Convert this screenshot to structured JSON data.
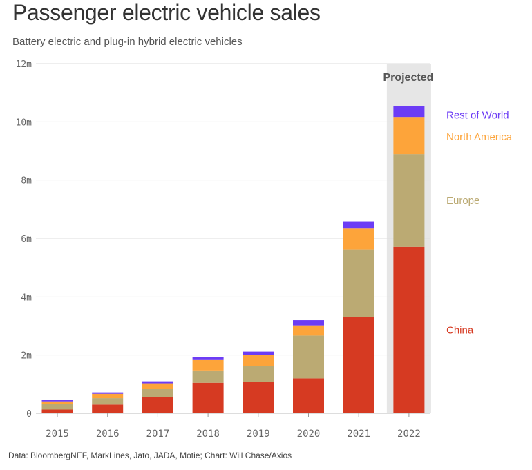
{
  "title": "Passenger electric vehicle sales",
  "subtitle": "Battery electric and plug-in hybrid electric vehicles",
  "source": "Data: BloombergNEF, MarkLines, Jato, JADA, Motie; Chart: Will Chase/Axios",
  "projected_label": "Projected",
  "chart_data": {
    "type": "bar",
    "stacked": true,
    "title": "Passenger electric vehicle sales",
    "subtitle": "Battery electric and plug-in hybrid electric vehicles",
    "categories": [
      "2015",
      "2016",
      "2017",
      "2018",
      "2019",
      "2020",
      "2021",
      "2022"
    ],
    "ylim": [
      0,
      12
    ],
    "yticks": [
      0,
      2,
      4,
      6,
      8,
      10,
      12
    ],
    "ytick_labels": [
      "0",
      "2m",
      "4m",
      "6m",
      "8m",
      "10m",
      "12m"
    ],
    "grid": true,
    "legend_placement": "right",
    "projected_category": "2022",
    "series": [
      {
        "name": "China",
        "color": "#d63a22",
        "values": [
          0.13,
          0.3,
          0.55,
          1.05,
          1.08,
          1.2,
          3.3,
          5.72
        ]
      },
      {
        "name": "Europe",
        "color": "#bbaa73",
        "values": [
          0.2,
          0.22,
          0.28,
          0.4,
          0.55,
          1.47,
          2.33,
          3.17
        ]
      },
      {
        "name": "North America",
        "color": "#fda43a",
        "values": [
          0.08,
          0.15,
          0.2,
          0.38,
          0.37,
          0.35,
          0.72,
          1.28
        ]
      },
      {
        "name": "Rest of World",
        "color": "#6c3cf5",
        "values": [
          0.04,
          0.05,
          0.07,
          0.1,
          0.12,
          0.18,
          0.23,
          0.36
        ]
      }
    ]
  }
}
